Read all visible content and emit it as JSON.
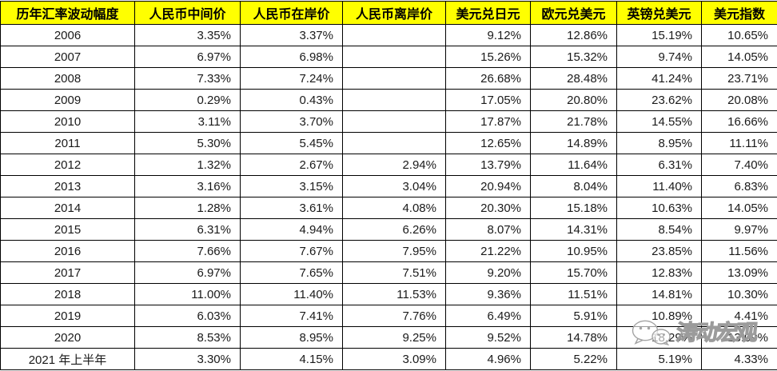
{
  "colors": {
    "header_bg": "#FFFF00",
    "header_text": "#000000",
    "body_text": "#1A1A1A",
    "border": "#000000",
    "background": "#FFFFFF",
    "watermark_outline": "#9B9B9B"
  },
  "chart_data": {
    "type": "table",
    "title": "历年汇率波动幅度",
    "columns": [
      "历年汇率波动幅度",
      "人民币中间价",
      "人民币在岸价",
      "人民币离岸价",
      "美元兑日元",
      "欧元兑美元",
      "英镑兑美元",
      "美元指数"
    ],
    "rows": [
      [
        "2006",
        "3.35%",
        "3.37%",
        "",
        "9.12%",
        "12.86%",
        "15.19%",
        "10.65%"
      ],
      [
        "2007",
        "6.97%",
        "6.98%",
        "",
        "15.26%",
        "15.32%",
        "9.74%",
        "14.05%"
      ],
      [
        "2008",
        "7.33%",
        "7.24%",
        "",
        "26.68%",
        "28.48%",
        "41.24%",
        "23.71%"
      ],
      [
        "2009",
        "0.29%",
        "0.43%",
        "",
        "17.05%",
        "20.80%",
        "23.62%",
        "20.08%"
      ],
      [
        "2010",
        "3.11%",
        "3.70%",
        "",
        "17.87%",
        "21.78%",
        "14.55%",
        "16.66%"
      ],
      [
        "2011",
        "5.30%",
        "5.45%",
        "",
        "12.65%",
        "14.89%",
        "8.95%",
        "11.11%"
      ],
      [
        "2012",
        "1.32%",
        "2.67%",
        "2.94%",
        "13.79%",
        "11.64%",
        "6.31%",
        "7.40%"
      ],
      [
        "2013",
        "3.16%",
        "3.15%",
        "3.04%",
        "20.94%",
        "8.04%",
        "11.40%",
        "6.83%"
      ],
      [
        "2014",
        "1.28%",
        "3.61%",
        "4.08%",
        "20.30%",
        "15.18%",
        "10.63%",
        "14.05%"
      ],
      [
        "2015",
        "6.31%",
        "4.94%",
        "6.26%",
        "8.07%",
        "14.31%",
        "8.54%",
        "9.97%"
      ],
      [
        "2016",
        "7.66%",
        "7.67%",
        "7.95%",
        "21.22%",
        "10.95%",
        "23.85%",
        "11.56%"
      ],
      [
        "2017",
        "6.97%",
        "7.65%",
        "7.51%",
        "9.20%",
        "15.70%",
        "12.83%",
        "13.09%"
      ],
      [
        "2018",
        "11.00%",
        "11.40%",
        "11.53%",
        "9.36%",
        "11.51%",
        "14.81%",
        "10.30%"
      ],
      [
        "2019",
        "6.03%",
        "7.41%",
        "7.76%",
        "6.49%",
        "5.91%",
        "10.89%",
        "4.41%"
      ],
      [
        "2020",
        "8.53%",
        "8.95%",
        "9.25%",
        "9.52%",
        "14.78%",
        "18.29%",
        "13.09%"
      ],
      [
        "2021 年上半年",
        "3.30%",
        "4.15%",
        "3.09%",
        "4.96%",
        "5.22%",
        "5.19%",
        "4.33%"
      ]
    ],
    "obscured_cells_note": "2020 row: 英镑兑美元 and 美元指数 cells are partially hidden by the watermark; visible fragments read \"8.2\" and \"…9%\"."
  },
  "watermark": {
    "text": "涛动宏观",
    "icon": "wechat-icon"
  }
}
